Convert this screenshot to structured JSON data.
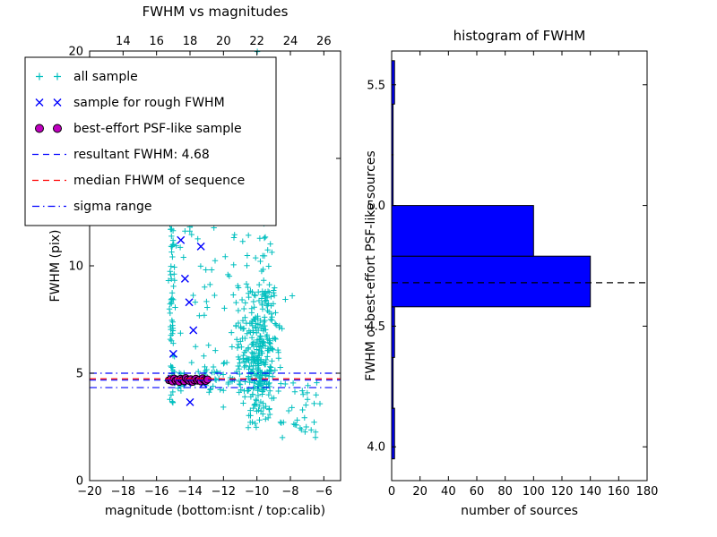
{
  "legend": {
    "entries": [
      {
        "label": "all sample",
        "kind": "plus",
        "color": "#00bfbf"
      },
      {
        "label": "sample for rough FWHM",
        "kind": "x",
        "color": "#0000ff"
      },
      {
        "label": "best-effort PSF-like sample",
        "kind": "circle",
        "color": "#bf00bf",
        "edge": "#000000"
      },
      {
        "label": "resultant FWHM: 4.68",
        "kind": "dashed",
        "color": "#0000ff"
      },
      {
        "label": "median FHWM of sequence",
        "kind": "dashed",
        "color": "#ff0000"
      },
      {
        "label": "sigma range",
        "kind": "dashdot",
        "color": "#0000ff"
      }
    ]
  },
  "chart_data": [
    {
      "type": "scatter",
      "title": "FWHM vs magnitudes",
      "xlabel": "magnitude (bottom:isnt / top:calib)",
      "ylabel": "FWHM (pix)",
      "xlim": [
        -20,
        -5
      ],
      "ylim": [
        0,
        20
      ],
      "x_ticks": {
        "values": [
          -20,
          -18,
          -16,
          -14,
          -12,
          -10,
          -8,
          -6
        ],
        "labels": [
          "−20",
          "−18",
          "−16",
          "−14",
          "−12",
          "−10",
          "−8",
          "−6"
        ]
      },
      "top_x_ticks": {
        "values": [
          -18,
          -16,
          -14,
          -12,
          -10,
          -8,
          -6
        ],
        "labels": [
          "14",
          "16",
          "18",
          "20",
          "22",
          "24",
          "26"
        ]
      },
      "y_ticks": {
        "values": [
          0,
          5,
          10,
          15,
          20
        ],
        "labels": [
          "0",
          "5",
          "10",
          "15",
          "20"
        ]
      },
      "series": [
        {
          "name": "all sample",
          "marker": "plus",
          "color": "#00bfbf",
          "seed": 7,
          "clusters": [
            {
              "n": 70,
              "x": {
                "dist": "normal",
                "mean": -15.08,
                "sd": 0.1
              },
              "y": {
                "dist": "uniform",
                "min": 3.6,
                "max": 12.4
              }
            },
            {
              "n": 360,
              "x": {
                "dist": "normal",
                "mean": -9.85,
                "sd": 0.6
              },
              "y": {
                "dist": "normal",
                "mean": 6.2,
                "sd": 2.1
              },
              "yclip": [
                2.3,
                19.8
              ]
            },
            {
              "n": 55,
              "x": {
                "dist": "uniform",
                "min": -14.6,
                "max": -11.2
              },
              "y": {
                "dist": "uniform",
                "min": 4.2,
                "max": 12.5
              }
            },
            {
              "n": 45,
              "x": {
                "dist": "uniform",
                "min": -15.4,
                "max": -10.3
              },
              "y": {
                "dist": "normal",
                "mean": 4.7,
                "sd": 0.25
              },
              "yclip": [
                3.8,
                5.6
              ]
            },
            {
              "n": 22,
              "x": {
                "dist": "normal",
                "mean": -9.75,
                "sd": 0.25
              },
              "y": {
                "dist": "uniform",
                "min": 12.0,
                "max": 20.0
              }
            },
            {
              "n": 14,
              "x": {
                "dist": "uniform",
                "min": -12.6,
                "max": -9.2
              },
              "y": {
                "dist": "uniform",
                "min": 12.0,
                "max": 18.5
              }
            },
            {
              "n": 30,
              "x": {
                "dist": "uniform",
                "min": -8.6,
                "max": -6.1
              },
              "y": {
                "dist": "uniform",
                "min": 2.0,
                "max": 4.6
              }
            }
          ]
        },
        {
          "name": "sample for rough FWHM",
          "marker": "x",
          "color": "#0000ff",
          "points": [
            [
              -14.55,
              11.2
            ],
            [
              -13.35,
              10.9
            ],
            [
              -14.3,
              9.4
            ],
            [
              -14.05,
              8.3
            ],
            [
              -13.8,
              7.0
            ],
            [
              -15.0,
              5.9
            ],
            [
              -15.1,
              4.75
            ],
            [
              -14.75,
              4.6
            ],
            [
              -14.45,
              4.7
            ],
            [
              -14.15,
              4.55
            ],
            [
              -13.85,
              4.65
            ],
            [
              -13.5,
              4.75
            ],
            [
              -13.2,
              4.5
            ],
            [
              -14.0,
              3.65
            ]
          ]
        },
        {
          "name": "best-effort PSF-like sample",
          "marker": "circle",
          "fill": "#bf00bf",
          "edge": "#000000",
          "points": [
            [
              -15.25,
              4.68
            ],
            [
              -15.15,
              4.72
            ],
            [
              -15.05,
              4.62
            ],
            [
              -14.95,
              4.75
            ],
            [
              -14.85,
              4.66
            ],
            [
              -14.75,
              4.7
            ],
            [
              -14.65,
              4.6
            ],
            [
              -14.55,
              4.74
            ],
            [
              -14.45,
              4.68
            ],
            [
              -14.35,
              4.63
            ],
            [
              -14.25,
              4.77
            ],
            [
              -14.15,
              4.7
            ],
            [
              -14.05,
              4.65
            ],
            [
              -13.95,
              4.72
            ],
            [
              -13.85,
              4.6
            ],
            [
              -13.75,
              4.68
            ],
            [
              -13.65,
              4.74
            ],
            [
              -13.55,
              4.66
            ],
            [
              -13.45,
              4.7
            ],
            [
              -13.35,
              4.62
            ],
            [
              -13.25,
              4.76
            ],
            [
              -13.15,
              4.68
            ],
            [
              -13.05,
              4.64
            ],
            [
              -12.95,
              4.71
            ]
          ]
        }
      ],
      "hlines": [
        {
          "name": "resultant-fwhm-line",
          "y": 4.68,
          "style": "dashed",
          "color": "#0000ff"
        },
        {
          "name": "median-sequence-line",
          "y": 4.74,
          "style": "dashed",
          "color": "#ff0000"
        },
        {
          "name": "sigma-range-lines",
          "y": [
            4.33,
            5.0
          ],
          "style": "dashdot",
          "color": "#0000ff"
        }
      ]
    },
    {
      "type": "barh",
      "title": "histogram of FWHM",
      "xlabel": "number of sources",
      "ylabel": "FWHM of best-effort PSF-like sources",
      "xlim": [
        0,
        180
      ],
      "ylim": [
        3.86,
        5.64
      ],
      "x_ticks": {
        "values": [
          0,
          20,
          40,
          60,
          80,
          100,
          120,
          140,
          160,
          180
        ],
        "labels": [
          "0",
          "20",
          "40",
          "60",
          "80",
          "100",
          "120",
          "140",
          "160",
          "180"
        ]
      },
      "y_ticks": {
        "values": [
          4.0,
          4.5,
          5.0,
          5.5
        ],
        "labels": [
          "4.0",
          "4.5",
          "5.0",
          "5.5"
        ]
      },
      "bar_fill": "#0000ff",
      "bar_edge": "#000000",
      "bins": {
        "edges": [
          3.95,
          4.16,
          4.37,
          4.58,
          4.79,
          5.0,
          5.21,
          5.42,
          5.6
        ],
        "counts": [
          2,
          1,
          2,
          140,
          100,
          1,
          1,
          2
        ]
      },
      "median_line": {
        "y": 4.68,
        "style": "dashed",
        "color": "#000000"
      }
    }
  ]
}
